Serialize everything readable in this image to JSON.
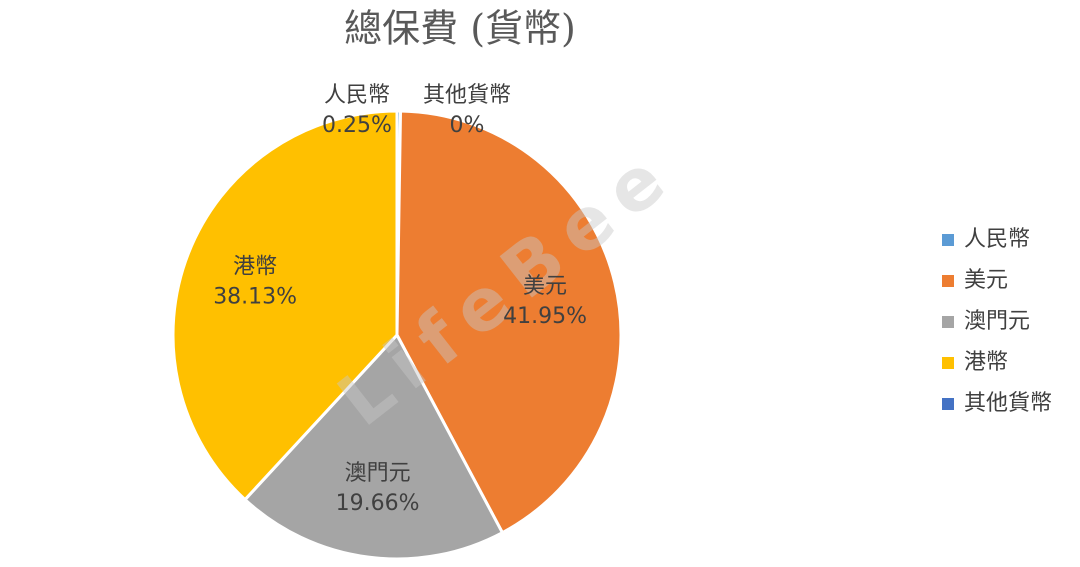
{
  "chart_data": {
    "type": "pie",
    "title": "總保費 (貨幣)",
    "watermark": "LifeBee",
    "categories": [
      "人民幣",
      "美元",
      "澳門元",
      "港幣",
      "其他貨幣"
    ],
    "values": [
      0.25,
      41.95,
      19.66,
      38.13,
      0
    ],
    "value_labels": [
      "0.25%",
      "41.95%",
      "19.66%",
      "38.13%",
      "0%"
    ],
    "colors": [
      "#5b9bd5",
      "#ed7d31",
      "#a5a5a5",
      "#ffc000",
      "#4472c4"
    ],
    "legend": "right"
  }
}
